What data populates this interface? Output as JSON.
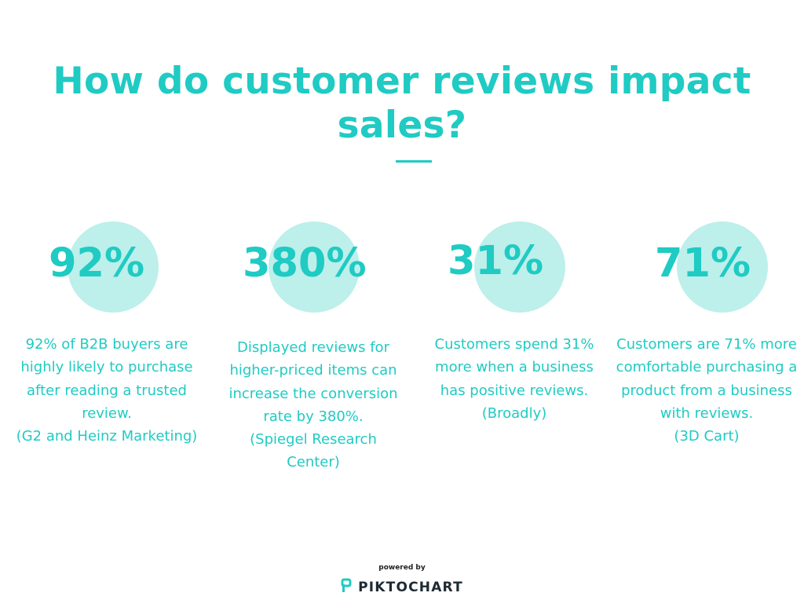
{
  "title": {
    "line1": "How do customer reviews impact",
    "line2": "sales?"
  },
  "stats": [
    {
      "value": "92%",
      "lines": [
        "92% of B2B buyers are",
        "highly likely to purchase",
        "after reading a trusted",
        "review.",
        "(G2 and Heinz Marketing)"
      ]
    },
    {
      "value": "380%",
      "lines": [
        "Displayed reviews for",
        "higher-priced items can",
        "increase the conversion",
        "rate by 380%.",
        "(Spiegel Research",
        "Center)"
      ]
    },
    {
      "value": "31%",
      "lines": [
        "Customers spend 31%",
        "more when a business",
        "has positive reviews.",
        "(Broadly)"
      ]
    },
    {
      "value": "71%",
      "lines": [
        "Customers are 71% more",
        "comfortable purchasing a",
        "product from a business",
        "with reviews.",
        "(3D Cart)"
      ]
    }
  ],
  "footer": {
    "powered_by": "powered by",
    "brand": "PIKTOCHART",
    "brand_icon": "piktochart-logo-icon"
  },
  "colors": {
    "accent": "#1fcbc3",
    "circle": "#bdefeb",
    "brand_text": "#1e2a33"
  }
}
